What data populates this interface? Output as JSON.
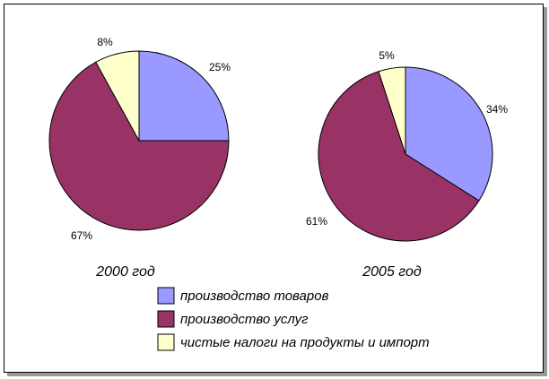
{
  "chart_data": [
    {
      "type": "pie",
      "title": "2000 год",
      "categories": [
        "производство товаров",
        "производство услуг",
        "чистые налоги на продукты и импорт"
      ],
      "values": [
        25,
        67,
        8
      ],
      "labels": [
        "25%",
        "67%",
        "8%"
      ]
    },
    {
      "type": "pie",
      "title": "2005 год",
      "categories": [
        "производство товаров",
        "производство услуг",
        "чистые налоги на продукты и импорт"
      ],
      "values": [
        34,
        61,
        5
      ],
      "labels": [
        "34%",
        "61%",
        "5%"
      ]
    }
  ],
  "legend": {
    "placement": "bottom",
    "items": [
      {
        "label": "производство товаров",
        "color": "#9999ff",
        "name": "legend-item-goods"
      },
      {
        "label": "производство услуг",
        "color": "#993366",
        "name": "legend-item-services"
      },
      {
        "label": "чистые налоги на продукты и импорт",
        "color": "#ffffcc",
        "name": "legend-item-taxes"
      }
    ]
  },
  "colors": {
    "goods": "#9999ff",
    "services": "#993366",
    "taxes": "#ffffcc",
    "outline": "#000000"
  }
}
